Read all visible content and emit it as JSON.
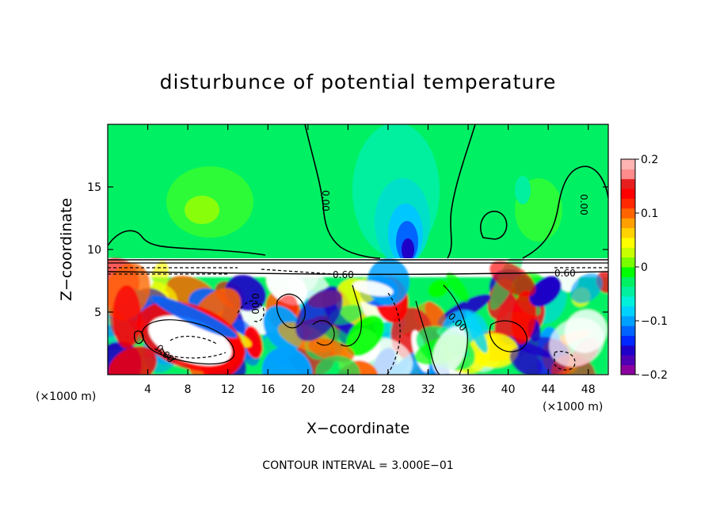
{
  "chart_data": {
    "type": "heatmap",
    "title": "disturbunce of potential temperature",
    "xlabel": "X−coordinate",
    "ylabel": "Z−coordinate",
    "x_unit_left": "(×1000 m)",
    "x_unit_right": "(×1000 m)",
    "xlim": [
      0,
      50
    ],
    "ylim": [
      0,
      20
    ],
    "x_ticks": [
      4,
      8,
      12,
      16,
      20,
      24,
      28,
      32,
      36,
      40,
      44,
      48
    ],
    "x_tick_labels": [
      "4",
      "8",
      "12",
      "16",
      "20",
      "24",
      "28",
      "32",
      "36",
      "40",
      "44",
      "48"
    ],
    "y_ticks": [
      5,
      10,
      15
    ],
    "y_tick_labels": [
      "5",
      "10",
      "15"
    ],
    "colorbar": {
      "min": -0.2,
      "max": 0.2,
      "tick_labels": [
        "0.2",
        "0.1",
        "0",
        "−0.1",
        "−0.2"
      ],
      "tick_values": [
        0.2,
        0.1,
        0,
        -0.1,
        -0.2
      ],
      "colors": [
        "#8c00a0",
        "#5000b4",
        "#1e00c8",
        "#0028ff",
        "#0064ff",
        "#00a0ff",
        "#00d2ff",
        "#00f0dc",
        "#00f0a0",
        "#00f064",
        "#00ff00",
        "#78ff00",
        "#c8ff00",
        "#ffff00",
        "#ffd200",
        "#ffa000",
        "#ff6400",
        "#ff2800",
        "#ff0000",
        "#e61e1e",
        "#ff8c8c",
        "#ffb4b4"
      ]
    },
    "contour_labels": [
      "0.00",
      "0.00",
      "0.00",
      "0.00",
      "0.00",
      "0.60",
      "0.60",
      "0.60",
      "0.00"
    ],
    "footer": "CONTOUR INTERVAL = 3.000E−01"
  }
}
